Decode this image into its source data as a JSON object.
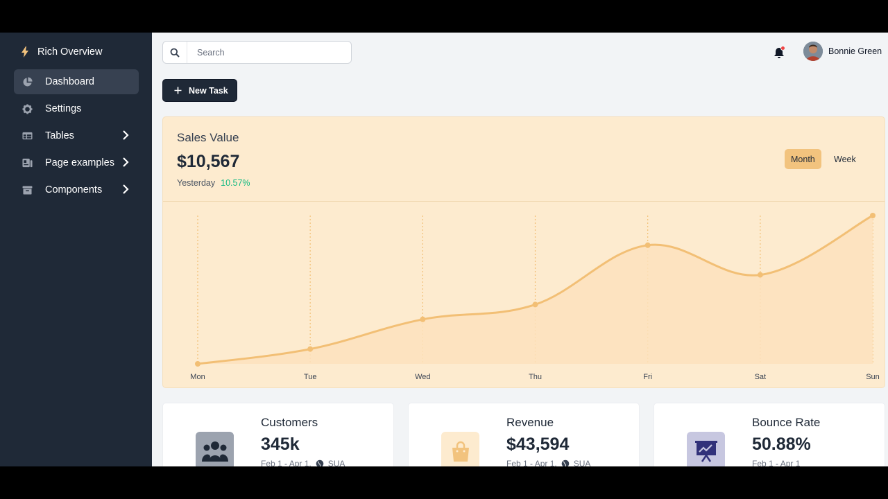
{
  "sidebar": {
    "brand": "Rich Overview",
    "items": [
      {
        "label": "Dashboard",
        "icon": "pie-chart-icon",
        "active": true
      },
      {
        "label": "Settings",
        "icon": "gear-icon"
      },
      {
        "label": "Tables",
        "icon": "table-icon",
        "has_submenu": true
      },
      {
        "label": "Page examples",
        "icon": "document-icon",
        "has_submenu": true
      },
      {
        "label": "Components",
        "icon": "archive-icon",
        "has_submenu": true
      }
    ]
  },
  "header": {
    "search_placeholder": "Search",
    "user_name": "Bonnie Green",
    "notification_dot_color": "#ef4444"
  },
  "actions": {
    "new_task_label": "New Task"
  },
  "sales": {
    "title": "Sales Value",
    "value": "$10,567",
    "period": "Yesterday",
    "change": "10.57%",
    "toggle_month": "Month",
    "toggle_week": "Week",
    "active_toggle": "Month"
  },
  "chart_data": {
    "type": "area",
    "categories": [
      "Mon",
      "Tue",
      "Wed",
      "Thu",
      "Fri",
      "Sat",
      "Sun"
    ],
    "series": [
      {
        "values": [
          0,
          10,
          30,
          40,
          80,
          60,
          100
        ]
      }
    ],
    "ylim": [
      0,
      100
    ],
    "grid": "vertical dotted",
    "colors": {
      "line": "#f2bf75",
      "fill": "#fde2bd",
      "grid": "#f2bf75"
    }
  },
  "cards": [
    {
      "title": "Customers",
      "value": "345k",
      "date": "Feb 1 - Apr 1,",
      "region": "SUA",
      "icon": "users-icon",
      "icon_bg": "#9ca3af",
      "icon_color": "#1f2937"
    },
    {
      "title": "Revenue",
      "value": "$43,594",
      "date": "Feb 1 - Apr 1,",
      "region": "SUA",
      "icon": "shopping-bag-icon",
      "icon_bg": "#fdebcf",
      "icon_color": "#f2c37e"
    },
    {
      "title": "Bounce Rate",
      "value": "50.88%",
      "date": "Feb 1 - Apr 1",
      "region": "",
      "icon": "presentation-chart-icon",
      "icon_bg": "#c7c7e0",
      "icon_color": "#32327a"
    }
  ],
  "colors": {
    "sidebar_bg": "#1f2937",
    "accent": "#f2c37e",
    "positive": "#10b981"
  }
}
